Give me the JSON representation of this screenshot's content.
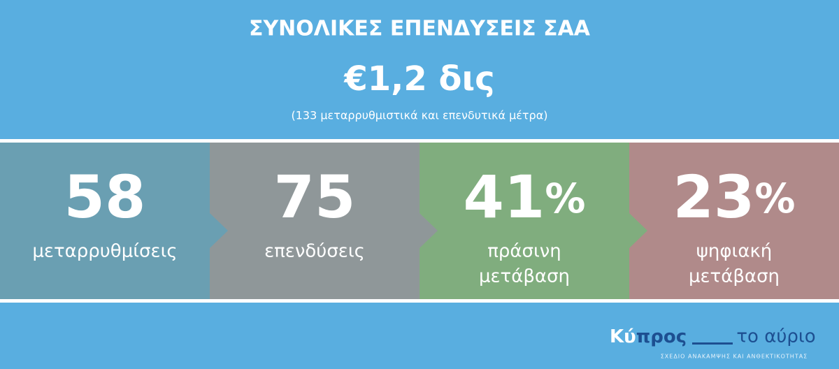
{
  "header": {
    "title": "ΣΥΝΟΛΙΚΕΣ ΕΠΕΝΔΥΣΕΙΣ ΣΑΑ",
    "amount": "€1,2 δις",
    "subtitle": "(133 μεταρρυθμιστικά και επενδυτικά μέτρα)"
  },
  "panels": [
    {
      "value": 58,
      "unit": null,
      "label": [
        "μεταρρυθμίσεις"
      ],
      "color": "#6a9fb2"
    },
    {
      "value": 75,
      "unit": null,
      "label": [
        "επενδύσεις"
      ],
      "color": "#8f9799"
    },
    {
      "value": 41,
      "unit": "%",
      "label": [
        "πράσινη",
        "μετάβαση"
      ],
      "color": "#80ad7e"
    },
    {
      "value": 23,
      "unit": "%",
      "label": [
        "ψηφιακή",
        "μετάβαση"
      ],
      "color": "#b08a8a"
    }
  ],
  "logo": {
    "part1": "Κύ",
    "part2": "προς",
    "part3": "το αύριο",
    "tagline": "ΣΧΕΔΙΟ ΑΝΑΚΑΜΨΗΣ ΚΑΙ ΑΝΘΕΚΤΙΚΟΤΗΤΑΣ"
  }
}
